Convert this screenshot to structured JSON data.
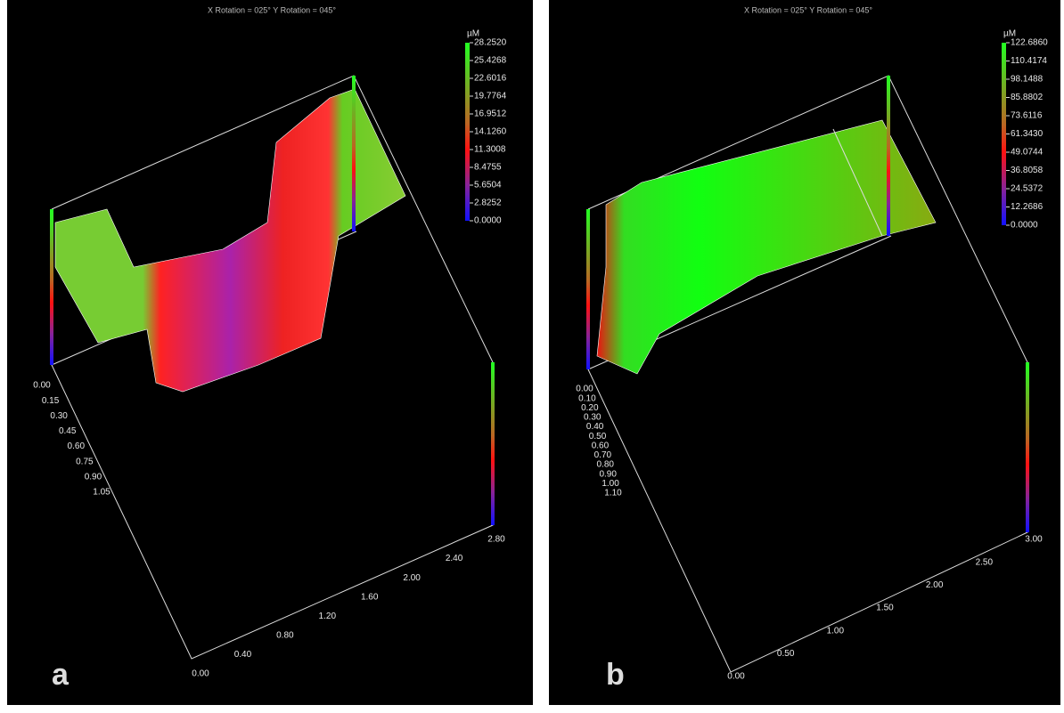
{
  "panels": [
    {
      "header": "X Rotation = 025°     Y Rotation = 045°",
      "unit": "µM",
      "colorbar": [
        "28.2520",
        "25.4268",
        "22.6016",
        "19.7764",
        "16.9512",
        "14.1260",
        "11.3008",
        "8.4755",
        "5.6504",
        "2.8252",
        "0.0000"
      ],
      "y_axis": [
        "0.00",
        "0.15",
        "0.30",
        "0.45",
        "0.60",
        "0.75",
        "0.90",
        "1.05"
      ],
      "x_axis": [
        "0.00",
        "0.40",
        "0.80",
        "1.20",
        "1.60",
        "2.00",
        "2.40",
        "2.80"
      ],
      "label": "a"
    },
    {
      "header": "X Rotation = 025°     Y Rotation = 045°",
      "unit": "µM",
      "colorbar": [
        "122.6860",
        "110.4174",
        "98.1488",
        "85.8802",
        "73.6116",
        "61.3430",
        "49.0744",
        "36.8058",
        "24.5372",
        "12.2686",
        "0.0000"
      ],
      "y_axis": [
        "0.00",
        "0.10",
        "0.20",
        "0.30",
        "0.40",
        "0.50",
        "0.60",
        "0.70",
        "0.80",
        "0.90",
        "1.00",
        "1.10"
      ],
      "x_axis": [
        "0.00",
        "0.50",
        "1.00",
        "1.50",
        "2.00",
        "2.50",
        "3.00"
      ],
      "label": "b"
    }
  ]
}
